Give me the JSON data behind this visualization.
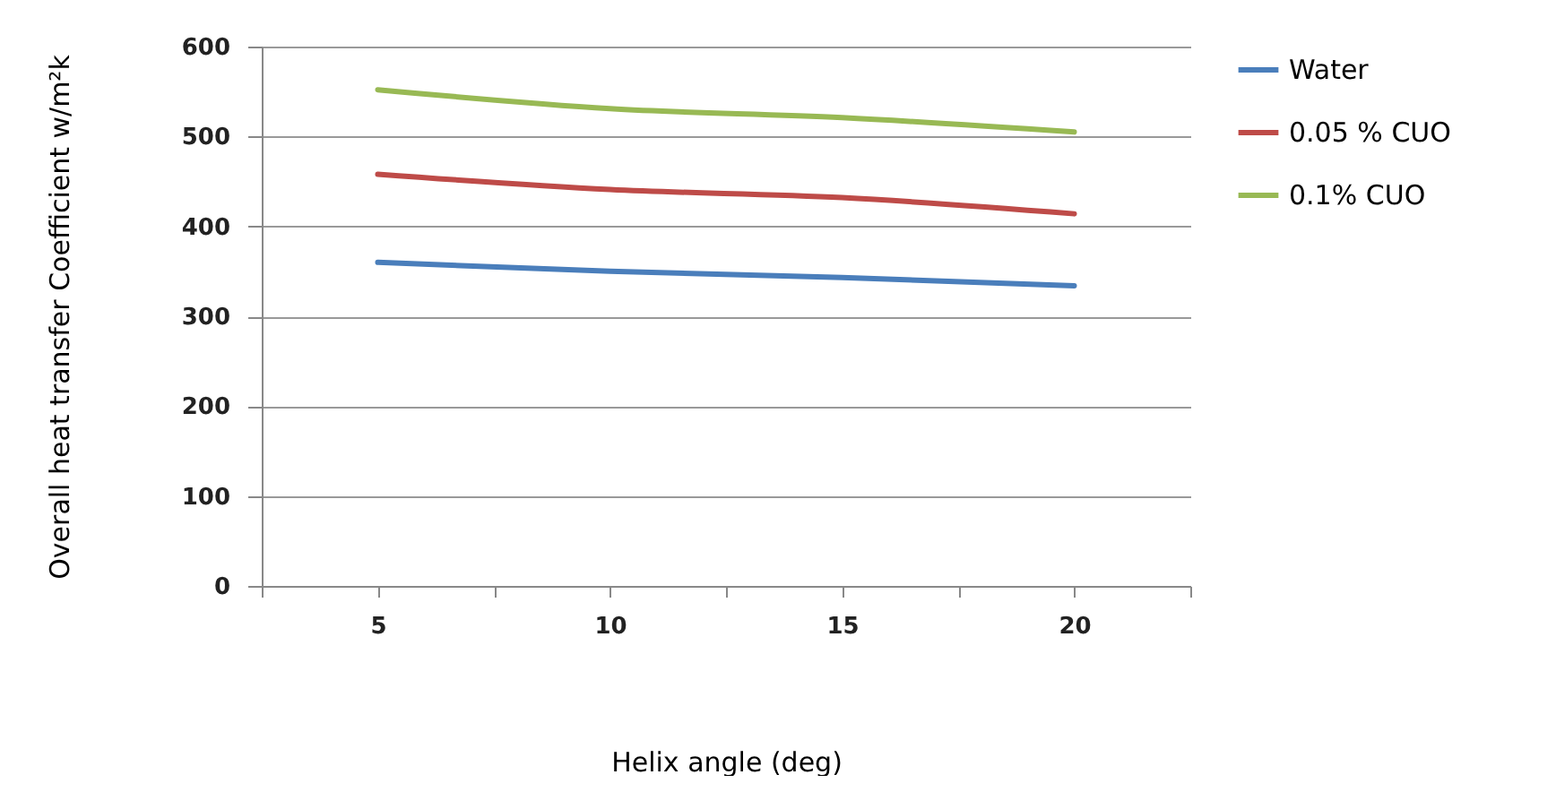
{
  "chart_data": {
    "type": "line",
    "xlabel": "Helix angle (deg)",
    "ylabel": "Overall heat transfer  Coefficient w/m²k",
    "categories": [
      "5",
      "10",
      "15",
      "20"
    ],
    "series": [
      {
        "name": "Water",
        "color": "#4a7ebb",
        "values": [
          360,
          350,
          343,
          334
        ]
      },
      {
        "name": "0.05 % CUO",
        "color": "#be4b48",
        "values": [
          458,
          441,
          432,
          414
        ]
      },
      {
        "name": "0.1% CUO",
        "color": "#98b954",
        "values": [
          552,
          531,
          521,
          505
        ]
      }
    ],
    "ylim": [
      0,
      600
    ],
    "yticks": [
      0,
      100,
      200,
      300,
      400,
      500,
      600
    ],
    "grid": "y",
    "legend": "right",
    "marker": "none",
    "line_style": "solid"
  }
}
